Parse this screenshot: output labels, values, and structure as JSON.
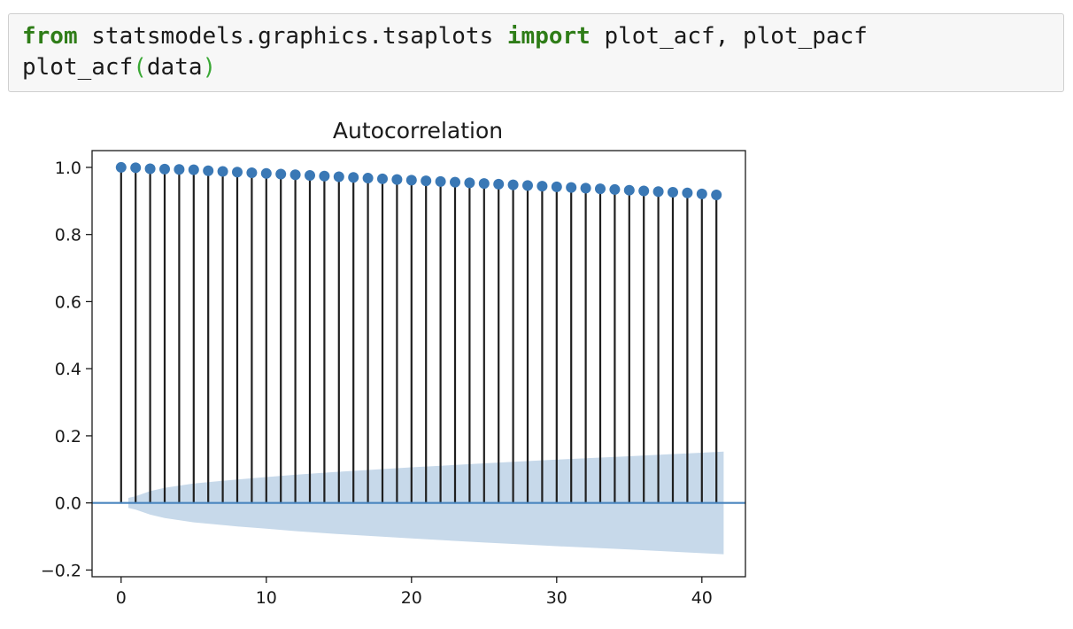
{
  "code_cell": {
    "line1": {
      "kw_from": "from",
      "module": " statsmodels.graphics.tsaplots ",
      "kw_import": "import",
      "names": " plot_acf, plot_pacf"
    },
    "line2": {
      "func": "plot_acf",
      "open_paren": "(",
      "arg": "data",
      "close_paren": ")"
    }
  },
  "colors": {
    "keyword": "#2f7d18",
    "paren": "#3aa835",
    "marker": "#3a78b5",
    "stem": "#1f1f1f",
    "confidence_band": "#c7d9ea",
    "baseline": "#4a86bf"
  },
  "chart_data": {
    "type": "scatter",
    "subtype": "stem",
    "title": "Autocorrelation",
    "xlabel": "",
    "ylabel": "",
    "xlim": [
      -2,
      43
    ],
    "ylim": [
      -0.22,
      1.05
    ],
    "xticks": [
      0,
      10,
      20,
      30,
      40
    ],
    "yticks": [
      -0.2,
      0.0,
      0.2,
      0.4,
      0.6,
      0.8,
      1.0
    ],
    "ytick_labels": [
      "−0.2",
      "0.0",
      "0.2",
      "0.4",
      "0.6",
      "0.8",
      "1.0"
    ],
    "grid": false,
    "lags": [
      0,
      1,
      2,
      3,
      4,
      5,
      6,
      7,
      8,
      9,
      10,
      11,
      12,
      13,
      14,
      15,
      16,
      17,
      18,
      19,
      20,
      21,
      22,
      23,
      24,
      25,
      26,
      27,
      28,
      29,
      30,
      31,
      32,
      33,
      34,
      35,
      36,
      37,
      38,
      39,
      40,
      41
    ],
    "acf": [
      1.0,
      0.999,
      0.996,
      0.995,
      0.994,
      0.993,
      0.99,
      0.988,
      0.986,
      0.984,
      0.982,
      0.98,
      0.978,
      0.976,
      0.974,
      0.972,
      0.97,
      0.968,
      0.966,
      0.964,
      0.962,
      0.96,
      0.958,
      0.956,
      0.954,
      0.952,
      0.95,
      0.948,
      0.946,
      0.944,
      0.942,
      0.94,
      0.938,
      0.936,
      0.934,
      0.932,
      0.93,
      0.928,
      0.926,
      0.924,
      0.921,
      0.918
    ],
    "confidence_band": {
      "x": [
        0.5,
        1,
        2,
        3,
        5,
        8,
        10,
        12,
        15,
        20,
        25,
        30,
        35,
        41.5
      ],
      "upper": [
        0.015,
        0.02,
        0.035,
        0.045,
        0.058,
        0.07,
        0.077,
        0.084,
        0.093,
        0.106,
        0.118,
        0.129,
        0.139,
        0.153
      ],
      "lower": [
        -0.015,
        -0.02,
        -0.035,
        -0.045,
        -0.058,
        -0.07,
        -0.077,
        -0.084,
        -0.093,
        -0.106,
        -0.118,
        -0.129,
        -0.139,
        -0.153
      ]
    }
  }
}
